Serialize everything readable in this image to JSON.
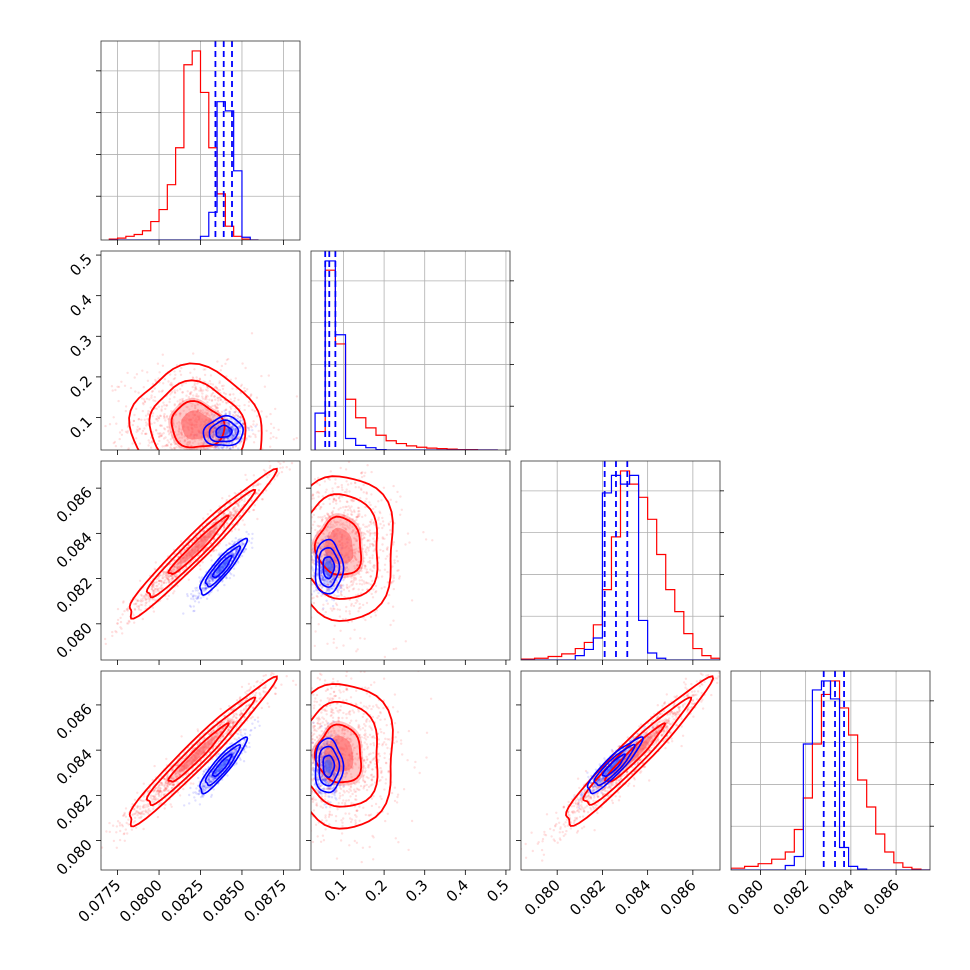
{
  "chart_data": {
    "type": "corner",
    "series": [
      {
        "name": "",
        "color": "#ff0000"
      },
      {
        "name": "",
        "color": "#0000ff"
      }
    ],
    "parameters": [
      {
        "range": [
          0.0765,
          0.0885
        ],
        "ticks": [
          0.0775,
          0.08,
          0.0825,
          0.085,
          0.0875
        ],
        "tick_labels": [
          "0.0775",
          "0.0800",
          "0.0825",
          "0.0850",
          "0.0875"
        ]
      },
      {
        "range": [
          0.02,
          0.51
        ],
        "ticks": [
          0.1,
          0.2,
          0.3,
          0.4,
          0.5
        ],
        "tick_labels": [
          "0.1",
          "0.2",
          "0.3",
          "0.4",
          "0.5"
        ]
      },
      {
        "range": [
          0.0784,
          0.0872
        ],
        "ticks": [
          0.08,
          0.082,
          0.084,
          0.086
        ],
        "tick_labels": [
          "0.080",
          "0.082",
          "0.084",
          "0.086"
        ]
      },
      {
        "range": [
          0.0787,
          0.0875
        ],
        "ticks": [
          0.08,
          0.082,
          0.084,
          0.086
        ],
        "tick_labels": [
          "0.080",
          "0.082",
          "0.084",
          "0.086"
        ]
      }
    ],
    "quantile_lines": [
      [
        0.0834,
        0.0839,
        0.0844
      ],
      [
        0.055,
        0.065,
        0.08
      ],
      [
        0.0821,
        0.0826,
        0.0831
      ],
      [
        0.0828,
        0.0833,
        0.0837
      ]
    ],
    "histograms": [
      {
        "edges": [
          0.077,
          0.0775,
          0.078,
          0.0785,
          0.079,
          0.0795,
          0.08,
          0.0805,
          0.081,
          0.0815,
          0.082,
          0.0825,
          0.083,
          0.0835,
          0.084,
          0.0845,
          0.085,
          0.0855,
          0.086
        ],
        "red": [
          1,
          2,
          4,
          6,
          10,
          20,
          33,
          60,
          100,
          190,
          205,
          160,
          100,
          50,
          15,
          4,
          1,
          0
        ],
        "blue": [
          0,
          0,
          0,
          0,
          0,
          0,
          0,
          0,
          0,
          0,
          0,
          4,
          30,
          150,
          140,
          75,
          3,
          0
        ]
      },
      {
        "edges": [
          0.03,
          0.055,
          0.08,
          0.105,
          0.13,
          0.155,
          0.18,
          0.205,
          0.23,
          0.255,
          0.28,
          0.305,
          0.33,
          0.355,
          0.38,
          0.405,
          0.43,
          0.455,
          0.48
        ],
        "red": [
          40,
          390,
          230,
          110,
          70,
          48,
          32,
          20,
          14,
          9,
          6,
          4,
          3,
          2,
          1,
          1,
          0,
          0
        ],
        "blue": [
          80,
          410,
          250,
          25,
          10,
          5,
          1,
          0,
          0,
          0,
          0,
          0,
          0,
          0,
          0,
          0,
          0,
          0
        ]
      },
      {
        "edges": [
          0.0784,
          0.079,
          0.0796,
          0.0802,
          0.0808,
          0.0812,
          0.0816,
          0.082,
          0.0824,
          0.0828,
          0.0832,
          0.0836,
          0.084,
          0.0844,
          0.0848,
          0.0852,
          0.0856,
          0.086,
          0.0864,
          0.0868,
          0.0872
        ],
        "red": [
          1,
          2,
          4,
          7,
          13,
          20,
          40,
          80,
          140,
          215,
          200,
          185,
          160,
          120,
          80,
          55,
          30,
          13,
          5,
          2
        ],
        "blue": [
          0,
          0,
          0,
          0,
          5,
          12,
          25,
          190,
          210,
          200,
          210,
          45,
          8,
          2,
          0,
          0,
          0,
          0,
          0,
          0
        ]
      },
      {
        "edges": [
          0.0787,
          0.0793,
          0.0799,
          0.0805,
          0.0811,
          0.0815,
          0.0819,
          0.0823,
          0.0827,
          0.0831,
          0.0835,
          0.0839,
          0.0843,
          0.0847,
          0.0851,
          0.0855,
          0.0859,
          0.0863,
          0.0867,
          0.0871,
          0.0875
        ],
        "red": [
          2,
          4,
          7,
          12,
          20,
          45,
          80,
          140,
          195,
          210,
          180,
          150,
          100,
          70,
          40,
          20,
          8,
          3,
          1,
          0
        ],
        "blue": [
          0,
          0,
          0,
          0,
          5,
          15,
          140,
          200,
          210,
          190,
          25,
          4,
          1,
          0,
          0,
          0,
          0,
          0,
          0,
          0
        ]
      }
    ],
    "scatter_panels": [
      {
        "row": 1,
        "col": 0,
        "red": {
          "mx": 0.0823,
          "sx": 0.002,
          "my": 0.08,
          "sy": 0.07,
          "rho": -0.1
        },
        "blue": {
          "mx": 0.0839,
          "sx": 0.0006,
          "my": 0.065,
          "sy": 0.018,
          "rho": 0.1
        }
      },
      {
        "row": 2,
        "col": 0,
        "red": {
          "mx": 0.0823,
          "sx": 0.0022,
          "my": 0.0834,
          "sy": 0.0016,
          "rho": 0.97
        },
        "blue": {
          "mx": 0.0838,
          "sx": 0.0007,
          "my": 0.0825,
          "sy": 0.0006,
          "rho": 0.9
        }
      },
      {
        "row": 2,
        "col": 1,
        "red": {
          "mx": 0.09,
          "sx": 0.07,
          "my": 0.0834,
          "sy": 0.0016,
          "rho": -0.05
        },
        "blue": {
          "mx": 0.063,
          "sx": 0.017,
          "my": 0.0825,
          "sy": 0.0006,
          "rho": 0.0
        }
      },
      {
        "row": 3,
        "col": 0,
        "red": {
          "mx": 0.0823,
          "sx": 0.0022,
          "my": 0.0838,
          "sy": 0.0016,
          "rho": 0.97
        },
        "blue": {
          "mx": 0.0838,
          "sx": 0.0007,
          "my": 0.0833,
          "sy": 0.0006,
          "rho": 0.9
        }
      },
      {
        "row": 3,
        "col": 1,
        "red": {
          "mx": 0.09,
          "sx": 0.07,
          "my": 0.0838,
          "sy": 0.0016,
          "rho": -0.05
        },
        "blue": {
          "mx": 0.063,
          "sx": 0.017,
          "my": 0.0833,
          "sy": 0.0006,
          "rho": 0.0
        }
      },
      {
        "row": 3,
        "col": 2,
        "red": {
          "mx": 0.0834,
          "sx": 0.0016,
          "my": 0.0838,
          "sy": 0.0016,
          "rho": 0.96
        },
        "blue": {
          "mx": 0.0825,
          "sx": 0.0006,
          "my": 0.0833,
          "sy": 0.0006,
          "rho": 0.9
        }
      }
    ],
    "grid": true,
    "legend": "none"
  }
}
